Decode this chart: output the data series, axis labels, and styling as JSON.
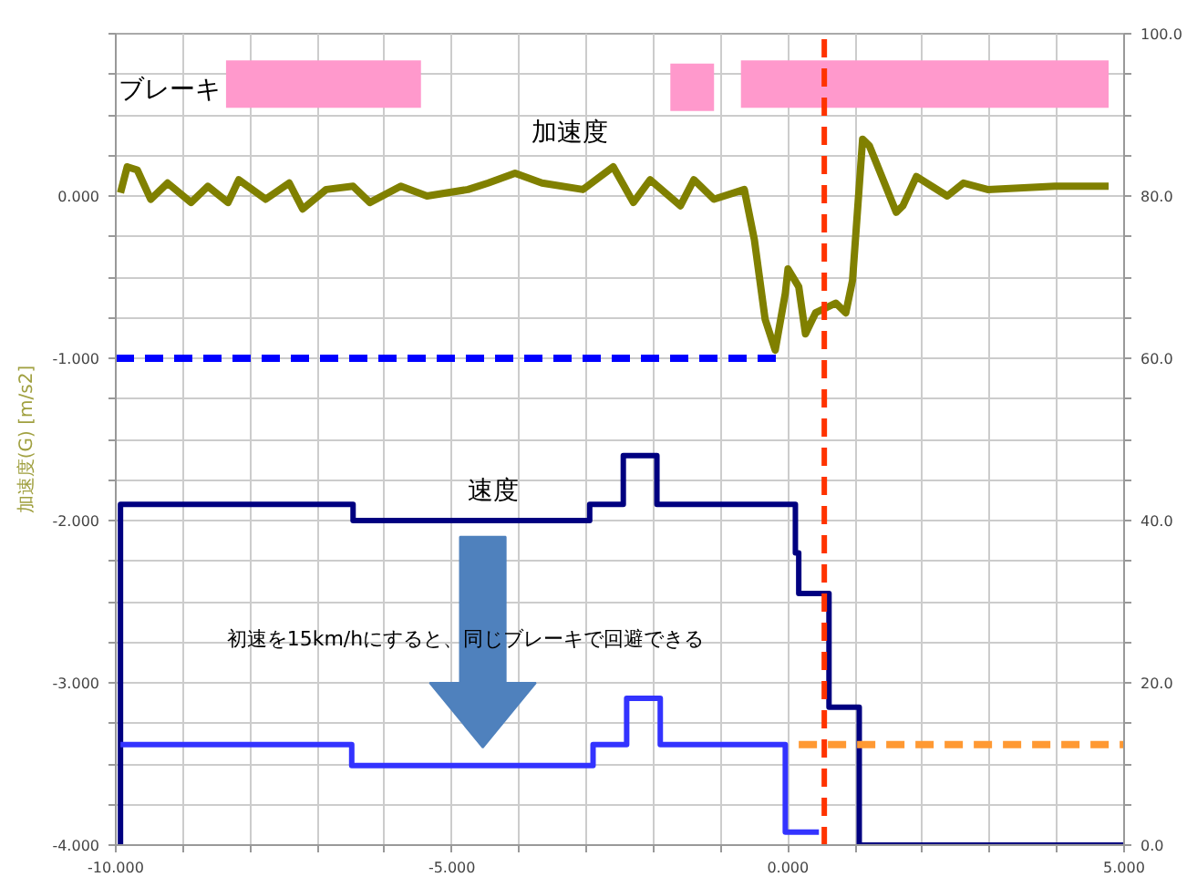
{
  "chart_data": {
    "type": "line",
    "ylabel": "加速度(G) [m/s2]",
    "xlim": [
      -10,
      5
    ],
    "ylim": [
      -4,
      1
    ],
    "y2lim": [
      0,
      100
    ],
    "xticks": [
      {
        "value": -10,
        "label": "-10.000"
      },
      {
        "value": -9,
        "label": null
      },
      {
        "value": -8,
        "label": null
      },
      {
        "value": -7,
        "label": null
      },
      {
        "value": -6,
        "label": null
      },
      {
        "value": -5,
        "label": "-5.000"
      },
      {
        "value": -4,
        "label": null
      },
      {
        "value": -3,
        "label": null
      },
      {
        "value": -2,
        "label": null
      },
      {
        "value": -1,
        "label": null
      },
      {
        "value": 0,
        "label": "0.000"
      },
      {
        "value": 1,
        "label": null
      },
      {
        "value": 2,
        "label": null
      },
      {
        "value": 3,
        "label": null
      },
      {
        "value": 4,
        "label": null
      },
      {
        "value": 5,
        "label": "5.000"
      }
    ],
    "yticks": [
      {
        "value": -4,
        "label": "-4.000"
      },
      {
        "value": -3.75,
        "label": null
      },
      {
        "value": -3.5,
        "label": null
      },
      {
        "value": -3.25,
        "label": null
      },
      {
        "value": -3,
        "label": "-3.000"
      },
      {
        "value": -2.75,
        "label": null
      },
      {
        "value": -2.5,
        "label": null
      },
      {
        "value": -2.25,
        "label": null
      },
      {
        "value": -2,
        "label": "-2.000"
      },
      {
        "value": -1.75,
        "label": null
      },
      {
        "value": -1.5,
        "label": null
      },
      {
        "value": -1.25,
        "label": null
      },
      {
        "value": -1,
        "label": "-1.000"
      },
      {
        "value": -0.75,
        "label": null
      },
      {
        "value": -0.5,
        "label": null
      },
      {
        "value": -0.25,
        "label": null
      },
      {
        "value": 0,
        "label": "0.000"
      },
      {
        "value": 0.25,
        "label": null
      },
      {
        "value": 0.5,
        "label": null
      },
      {
        "value": 0.75,
        "label": null
      },
      {
        "value": 1,
        "label": null
      }
    ],
    "y2ticks": [
      {
        "value": 0,
        "label": "0.0"
      },
      {
        "value": 5,
        "label": null
      },
      {
        "value": 10,
        "label": null
      },
      {
        "value": 15,
        "label": null
      },
      {
        "value": 20,
        "label": "20.0"
      },
      {
        "value": 25,
        "label": null
      },
      {
        "value": 30,
        "label": null
      },
      {
        "value": 35,
        "label": null
      },
      {
        "value": 40,
        "label": "40.0"
      },
      {
        "value": 45,
        "label": null
      },
      {
        "value": 50,
        "label": null
      },
      {
        "value": 55,
        "label": null
      },
      {
        "value": 60,
        "label": "60.0"
      },
      {
        "value": 65,
        "label": null
      },
      {
        "value": 70,
        "label": null
      },
      {
        "value": 75,
        "label": null
      },
      {
        "value": 80,
        "label": "80.0"
      },
      {
        "value": 85,
        "label": null
      },
      {
        "value": 90,
        "label": null
      },
      {
        "value": 95,
        "label": null
      },
      {
        "value": 100,
        "label": "100.0"
      }
    ],
    "grid": true,
    "series": [
      {
        "type": "line",
        "color": "#ff99cc",
        "x": [
          -8.36,
          -5.46,
          null,
          -1.75,
          -1.1,
          null,
          -0.7,
          4.77
        ],
        "values": [
          0.69,
          0.69,
          null,
          0.67,
          0.67,
          null,
          0.69,
          0.69
        ]
      },
      {
        "color": "#808000",
        "x": [
          -9.93,
          -9.83,
          -9.68,
          -9.48,
          -9.23,
          -8.88,
          -8.63,
          -8.33,
          -8.17,
          -7.77,
          -7.42,
          -7.22,
          -6.87,
          -6.47,
          -6.22,
          -5.76,
          -5.37,
          -4.76,
          -4.46,
          -4.06,
          -3.66,
          -3.05,
          -2.6,
          -2.3,
          -2.05,
          -1.6,
          -1.4,
          -1.1,
          -0.65,
          -0.5,
          -0.34,
          -0.19,
          -0.04,
          0.0,
          0.16,
          0.26,
          0.41,
          0.71,
          0.86,
          0.96,
          1.11,
          1.21,
          1.61,
          1.71,
          1.91,
          2.37,
          2.61,
          2.97,
          3.97,
          4.77
        ],
        "values": [
          0.02,
          0.18,
          0.16,
          -0.02,
          0.08,
          -0.04,
          0.06,
          -0.04,
          0.1,
          -0.02,
          0.08,
          -0.08,
          0.04,
          0.06,
          -0.04,
          0.06,
          0.0,
          0.04,
          0.08,
          0.14,
          0.08,
          0.04,
          0.18,
          -0.04,
          0.1,
          -0.06,
          0.1,
          -0.02,
          0.04,
          -0.27,
          -0.76,
          -0.95,
          -0.6,
          -0.45,
          -0.56,
          -0.85,
          -0.72,
          -0.66,
          -0.72,
          -0.52,
          0.35,
          0.31,
          -0.1,
          -0.06,
          0.12,
          0.0,
          0.08,
          0.04,
          0.06,
          0.06
        ]
      },
      {
        "type": "line",
        "line_style": "dashed",
        "color": "#0000ff",
        "x": [
          -10,
          -0.15
        ],
        "values": [
          -1,
          -1
        ]
      },
      {
        "type": "step",
        "axis": "y2",
        "color": "#000080",
        "x": [
          -9.93,
          -9.93,
          -6.47,
          -2.95,
          -2.45,
          -1.95,
          0.11,
          0.16,
          0.61,
          1.06,
          5
        ],
        "values": [
          0,
          42,
          40,
          42,
          48,
          42,
          36,
          31,
          17,
          0,
          0
        ]
      },
      {
        "type": "step",
        "axis": "y2",
        "color": "#3333ff",
        "x": [
          -9.93,
          -6.49,
          -2.9,
          -2.4,
          -1.9,
          -0.04,
          0.46
        ],
        "values": [
          12.4,
          9.8,
          12.4,
          18.1,
          12.4,
          1.6,
          1.6
        ]
      },
      {
        "type": "line",
        "axis": "y2",
        "line_style": "dashed",
        "color": "#ff9933",
        "x": [
          0.16,
          5
        ],
        "values": [
          12.4,
          12.4
        ]
      }
    ],
    "ref_lines": [
      {
        "axis": "x",
        "value": 0.54,
        "color": "#ff3300",
        "line_style": "dashed"
      }
    ],
    "annotations": [
      "ブレーキ",
      "加速度",
      "速度",
      "初速を15km/hにすると、同じブレーキで回避できる"
    ]
  }
}
